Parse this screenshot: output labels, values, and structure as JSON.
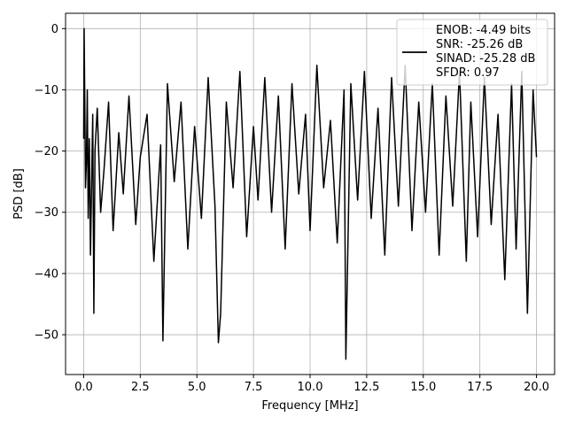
{
  "chart_data": {
    "type": "line",
    "xlabel": "Frequency [MHz]",
    "ylabel": "PSD [dB]",
    "xlim": [
      -0.8,
      20.8
    ],
    "ylim": [
      -56.5,
      2.5
    ],
    "xticks": [
      0.0,
      2.5,
      5.0,
      7.5,
      10.0,
      12.5,
      15.0,
      17.5,
      20.0
    ],
    "xtick_labels": [
      "0.0",
      "2.5",
      "5.0",
      "7.5",
      "10.0",
      "12.5",
      "15.0",
      "17.5",
      "20.0"
    ],
    "yticks": [
      0,
      -10,
      -20,
      -30,
      -40,
      -50
    ],
    "ytick_labels": [
      "0",
      "−10",
      "−20",
      "−30",
      "−40",
      "−50"
    ],
    "grid": true,
    "legend_position": "top-right",
    "legend_lines": [
      "ENOB: -4.49 bits",
      "SNR: -25.26 dB",
      "SINAD: -25.28 dB",
      "SFDR: 0.97"
    ],
    "line_color": "#000000",
    "series": [
      {
        "x": [
          0.0,
          0.02,
          0.05,
          0.08,
          0.12,
          0.16,
          0.2,
          0.25,
          0.3,
          0.4,
          0.45,
          0.5,
          0.6,
          0.75,
          0.9,
          1.1,
          1.3,
          1.55,
          1.75,
          2.0,
          2.3,
          2.5,
          2.8,
          3.1,
          3.4,
          3.5,
          3.7,
          4.0,
          4.3,
          4.6,
          4.9,
          5.2,
          5.5,
          5.8,
          5.95,
          6.05,
          6.3,
          6.6,
          6.9,
          7.2,
          7.5,
          7.7,
          8.0,
          8.3,
          8.6,
          8.9,
          9.2,
          9.5,
          9.8,
          10.0,
          10.3,
          10.6,
          10.9,
          11.2,
          11.5,
          11.58,
          11.8,
          12.1,
          12.4,
          12.7,
          13.0,
          13.3,
          13.6,
          13.9,
          14.2,
          14.5,
          14.8,
          15.1,
          15.4,
          15.7,
          16.0,
          16.3,
          16.6,
          16.9,
          17.1,
          17.4,
          17.7,
          18.0,
          18.3,
          18.6,
          18.9,
          19.1,
          19.35,
          19.6,
          19.85,
          20.0
        ],
        "y": [
          -18,
          0,
          -12,
          -26,
          -22,
          -10,
          -31,
          -18,
          -37,
          -14,
          -46.5,
          -20,
          -13,
          -30,
          -23,
          -12,
          -33,
          -17,
          -27,
          -11,
          -32,
          -21,
          -14,
          -38,
          -19,
          -51,
          -9,
          -25,
          -12,
          -36,
          -16,
          -31,
          -8,
          -29,
          -51.3,
          -46.5,
          -12,
          -26,
          -7,
          -34,
          -16,
          -28,
          -8,
          -30,
          -11,
          -36,
          -9,
          -27,
          -14,
          -33,
          -6,
          -26,
          -15,
          -35,
          -10,
          -54,
          -9,
          -28,
          -7,
          -31,
          -13,
          -37,
          -8,
          -29,
          -6,
          -33,
          -12,
          -30,
          -9,
          -37,
          -11,
          -29,
          -7,
          -38,
          -12,
          -34,
          -8,
          -32,
          -14,
          -41,
          -9,
          -36,
          -7,
          -46.5,
          -10,
          -21
        ]
      }
    ]
  }
}
